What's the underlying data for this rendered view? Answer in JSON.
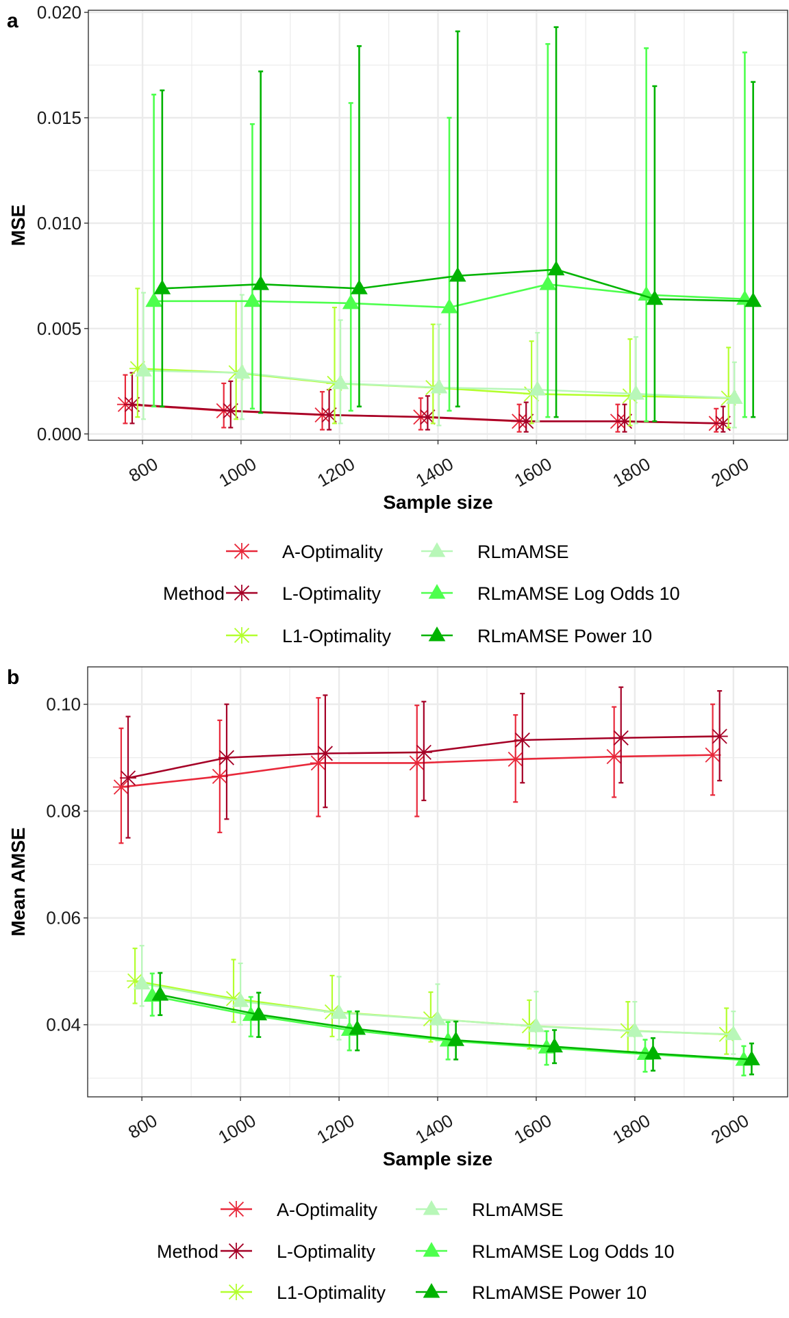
{
  "chart_data": [
    {
      "type": "line",
      "panel_label": "a",
      "xlabel": "Sample size",
      "ylabel": "MSE",
      "x": [
        800,
        1000,
        1200,
        1400,
        1600,
        1800,
        2000
      ],
      "xticks": [
        "800",
        "1000",
        "1200",
        "1400",
        "1600",
        "1800",
        "2000"
      ],
      "yticks": [
        "0.000",
        "0.005",
        "0.010",
        "0.015",
        "0.020"
      ],
      "ytick_values": [
        0,
        0.005,
        0.01,
        0.015,
        0.02
      ],
      "ylim": [
        -0.0003,
        0.0201
      ],
      "xlim": [
        690,
        2110
      ],
      "grid": true,
      "error_bars": true,
      "legend_title": "Method",
      "legend_position": "bottom",
      "series": [
        {
          "name": "A-Optimality",
          "color": "#E8283A",
          "marker": "asterisk",
          "values": [
            0.0014,
            0.0011,
            0.0009,
            0.0008,
            0.0006,
            0.0006,
            0.0005
          ],
          "lower": [
            0.0005,
            0.0003,
            0.0002,
            0.0002,
            0.0001,
            0.0001,
            0.0001
          ],
          "upper": [
            0.0028,
            0.0024,
            0.002,
            0.0017,
            0.0014,
            0.0014,
            0.0012
          ]
        },
        {
          "name": "L-Optimality",
          "color": "#A50026",
          "marker": "asterisk",
          "values": [
            0.0014,
            0.0011,
            0.0009,
            0.0008,
            0.0006,
            0.0006,
            0.0005
          ],
          "lower": [
            0.0005,
            0.0003,
            0.0002,
            0.0002,
            0.0001,
            0.0001,
            0.0001
          ],
          "upper": [
            0.0029,
            0.0025,
            0.0021,
            0.0018,
            0.0015,
            0.0014,
            0.0013
          ]
        },
        {
          "name": "L1-Optimality",
          "color": "#B3FF2E",
          "marker": "asterisk",
          "values": [
            0.0031,
            0.0029,
            0.0024,
            0.0022,
            0.0019,
            0.0018,
            0.0017
          ],
          "lower": [
            0.0008,
            0.0007,
            0.0005,
            0.0005,
            0.0005,
            0.0004,
            0.0003
          ],
          "upper": [
            0.0069,
            0.0063,
            0.006,
            0.0052,
            0.0044,
            0.0045,
            0.0041
          ]
        },
        {
          "name": "RLmAMSE",
          "color": "#B8F7B8",
          "marker": "triangle",
          "values": [
            0.003,
            0.0029,
            0.0024,
            0.0022,
            0.0021,
            0.0019,
            0.0017
          ],
          "lower": [
            0.0007,
            0.0007,
            0.0005,
            0.0004,
            0.0006,
            0.0005,
            0.0003
          ],
          "upper": [
            0.0067,
            0.0066,
            0.0054,
            0.0052,
            0.0048,
            0.0046,
            0.0034
          ]
        },
        {
          "name": "RLmAMSE Log Odds 10",
          "color": "#4DFF4D",
          "marker": "triangle",
          "values": [
            0.0063,
            0.0063,
            0.0062,
            0.006,
            0.0071,
            0.0066,
            0.0064
          ],
          "lower": [
            0.0013,
            0.0012,
            0.0011,
            0.0011,
            0.0008,
            0.0006,
            0.0008
          ],
          "upper": [
            0.0161,
            0.0147,
            0.0157,
            0.015,
            0.0185,
            0.0183,
            0.0181
          ]
        },
        {
          "name": "RLmAMSE Power 10",
          "color": "#00B300",
          "marker": "triangle",
          "values": [
            0.0069,
            0.0071,
            0.0069,
            0.0075,
            0.0078,
            0.0064,
            0.0063
          ],
          "lower": [
            0.0013,
            0.001,
            0.0013,
            0.0013,
            0.0008,
            0.0006,
            0.0008
          ],
          "upper": [
            0.0163,
            0.0172,
            0.0184,
            0.0191,
            0.0193,
            0.0165,
            0.0167
          ]
        }
      ]
    },
    {
      "type": "line",
      "panel_label": "b",
      "xlabel": "Sample size",
      "ylabel": "Mean AMSE",
      "x": [
        800,
        1000,
        1200,
        1400,
        1600,
        1800,
        2000
      ],
      "xticks": [
        "800",
        "1000",
        "1200",
        "1400",
        "1600",
        "1800",
        "2000"
      ],
      "yticks": [
        "0.04",
        "0.06",
        "0.08",
        "0.10"
      ],
      "ytick_values": [
        0.04,
        0.06,
        0.08,
        0.1
      ],
      "ylim": [
        0.0265,
        0.107
      ],
      "xlim": [
        690,
        2110
      ],
      "grid": true,
      "error_bars": true,
      "legend_title": "Method",
      "legend_position": "bottom",
      "series": [
        {
          "name": "A-Optimality",
          "color": "#E8283A",
          "marker": "asterisk",
          "values": [
            0.0845,
            0.0865,
            0.089,
            0.089,
            0.0897,
            0.0902,
            0.0905
          ],
          "lower": [
            0.074,
            0.076,
            0.079,
            0.079,
            0.0817,
            0.0826,
            0.083
          ],
          "upper": [
            0.0955,
            0.097,
            0.1012,
            0.0998,
            0.098,
            0.0995,
            0.1
          ]
        },
        {
          "name": "L-Optimality",
          "color": "#A50026",
          "marker": "asterisk",
          "values": [
            0.0862,
            0.09,
            0.0908,
            0.091,
            0.0933,
            0.0937,
            0.094
          ],
          "lower": [
            0.075,
            0.0785,
            0.0807,
            0.082,
            0.0853,
            0.0853,
            0.0857
          ],
          "upper": [
            0.0977,
            0.1,
            0.1017,
            0.1005,
            0.102,
            0.1032,
            0.1025
          ]
        },
        {
          "name": "L1-Optimality",
          "color": "#B3FF2E",
          "marker": "asterisk",
          "values": [
            0.0482,
            0.0449,
            0.0424,
            0.0411,
            0.0398,
            0.0389,
            0.0382
          ],
          "lower": [
            0.044,
            0.0405,
            0.0378,
            0.0368,
            0.0355,
            0.035,
            0.0345
          ],
          "upper": [
            0.0543,
            0.0522,
            0.0492,
            0.0461,
            0.0446,
            0.0443,
            0.0431
          ]
        },
        {
          "name": "RLmAMSE",
          "color": "#B8F7B8",
          "marker": "triangle",
          "values": [
            0.0477,
            0.0444,
            0.0422,
            0.041,
            0.0397,
            0.0388,
            0.0382
          ],
          "lower": [
            0.0435,
            0.04,
            0.0372,
            0.037,
            0.0355,
            0.035,
            0.0345
          ],
          "upper": [
            0.0548,
            0.0515,
            0.049,
            0.0476,
            0.0462,
            0.0443,
            0.0425
          ]
        },
        {
          "name": "RLmAMSE Log Odds 10",
          "color": "#4DFF4D",
          "marker": "triangle",
          "values": [
            0.0454,
            0.0418,
            0.039,
            0.037,
            0.0357,
            0.0345,
            0.0334
          ],
          "lower": [
            0.0417,
            0.0378,
            0.0352,
            0.0335,
            0.0325,
            0.0312,
            0.0305
          ],
          "upper": [
            0.0496,
            0.0452,
            0.0425,
            0.0405,
            0.0388,
            0.0372,
            0.036
          ]
        },
        {
          "name": "RLmAMSE Power 10",
          "color": "#00B300",
          "marker": "triangle",
          "values": [
            0.0456,
            0.0419,
            0.0392,
            0.0371,
            0.0359,
            0.0346,
            0.0335
          ],
          "lower": [
            0.0418,
            0.0377,
            0.0352,
            0.0335,
            0.0328,
            0.0314,
            0.0307
          ],
          "upper": [
            0.0497,
            0.046,
            0.0425,
            0.0406,
            0.039,
            0.0375,
            0.0365
          ]
        }
      ]
    }
  ]
}
